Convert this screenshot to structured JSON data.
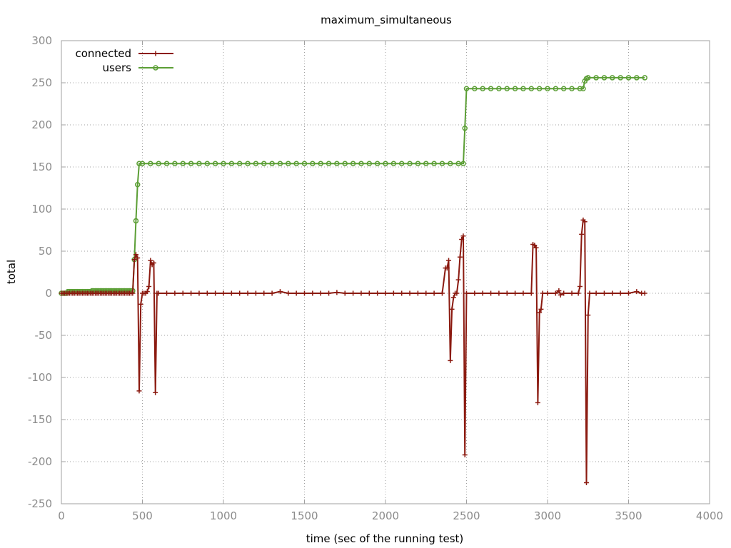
{
  "chart_data": {
    "type": "line",
    "title": "maximum_simultaneous",
    "xlabel": "time (sec of the running test)",
    "ylabel": "total",
    "xlim": [
      0,
      4000
    ],
    "ylim": [
      -250,
      300
    ],
    "xticks": [
      0,
      500,
      1000,
      1500,
      2000,
      2500,
      3000,
      3500,
      4000
    ],
    "yticks": [
      -250,
      -200,
      -150,
      -100,
      -50,
      0,
      50,
      100,
      150,
      200,
      250,
      300
    ],
    "grid": true,
    "legend_position": "top-left",
    "series": [
      {
        "name": "connected",
        "color": "#8b1a10",
        "marker": "plus",
        "points": [
          [
            0,
            0
          ],
          [
            10,
            0
          ],
          [
            20,
            0
          ],
          [
            30,
            0
          ],
          [
            40,
            0
          ],
          [
            50,
            0
          ],
          [
            60,
            0
          ],
          [
            70,
            0
          ],
          [
            80,
            0
          ],
          [
            90,
            0
          ],
          [
            100,
            0
          ],
          [
            110,
            0
          ],
          [
            120,
            0
          ],
          [
            130,
            0
          ],
          [
            140,
            0
          ],
          [
            150,
            0
          ],
          [
            160,
            0
          ],
          [
            170,
            0
          ],
          [
            180,
            0
          ],
          [
            190,
            0
          ],
          [
            200,
            0
          ],
          [
            210,
            0
          ],
          [
            220,
            0
          ],
          [
            230,
            0
          ],
          [
            240,
            0
          ],
          [
            250,
            0
          ],
          [
            260,
            0
          ],
          [
            270,
            0
          ],
          [
            280,
            0
          ],
          [
            290,
            0
          ],
          [
            300,
            0
          ],
          [
            310,
            0
          ],
          [
            320,
            0
          ],
          [
            330,
            0
          ],
          [
            340,
            0
          ],
          [
            350,
            0
          ],
          [
            360,
            0
          ],
          [
            370,
            0
          ],
          [
            380,
            0
          ],
          [
            390,
            0
          ],
          [
            400,
            0
          ],
          [
            410,
            0
          ],
          [
            420,
            0
          ],
          [
            430,
            0
          ],
          [
            440,
            0
          ],
          [
            450,
            40
          ],
          [
            460,
            46
          ],
          [
            470,
            42
          ],
          [
            480,
            -116
          ],
          [
            490,
            -13
          ],
          [
            500,
            0
          ],
          [
            510,
            0
          ],
          [
            520,
            0
          ],
          [
            530,
            2
          ],
          [
            540,
            8
          ],
          [
            550,
            39
          ],
          [
            560,
            34
          ],
          [
            570,
            36
          ],
          [
            580,
            -118
          ],
          [
            590,
            0
          ],
          [
            600,
            0
          ],
          [
            650,
            0
          ],
          [
            700,
            0
          ],
          [
            750,
            0
          ],
          [
            800,
            0
          ],
          [
            850,
            0
          ],
          [
            900,
            0
          ],
          [
            950,
            0
          ],
          [
            1000,
            0
          ],
          [
            1050,
            0
          ],
          [
            1100,
            0
          ],
          [
            1150,
            0
          ],
          [
            1200,
            0
          ],
          [
            1250,
            0
          ],
          [
            1300,
            0
          ],
          [
            1350,
            2
          ],
          [
            1400,
            0
          ],
          [
            1450,
            0
          ],
          [
            1500,
            0
          ],
          [
            1550,
            0
          ],
          [
            1600,
            0
          ],
          [
            1650,
            0
          ],
          [
            1700,
            1
          ],
          [
            1750,
            0
          ],
          [
            1800,
            0
          ],
          [
            1850,
            0
          ],
          [
            1900,
            0
          ],
          [
            1950,
            0
          ],
          [
            2000,
            0
          ],
          [
            2050,
            0
          ],
          [
            2100,
            0
          ],
          [
            2150,
            0
          ],
          [
            2200,
            0
          ],
          [
            2250,
            0
          ],
          [
            2300,
            0
          ],
          [
            2350,
            0
          ],
          [
            2370,
            30
          ],
          [
            2380,
            30
          ],
          [
            2390,
            39
          ],
          [
            2400,
            -80
          ],
          [
            2410,
            -19
          ],
          [
            2420,
            -5
          ],
          [
            2430,
            0
          ],
          [
            2440,
            0
          ],
          [
            2450,
            16
          ],
          [
            2460,
            43
          ],
          [
            2470,
            64
          ],
          [
            2480,
            68
          ],
          [
            2490,
            -192
          ],
          [
            2500,
            0
          ],
          [
            2550,
            0
          ],
          [
            2600,
            0
          ],
          [
            2650,
            0
          ],
          [
            2700,
            0
          ],
          [
            2750,
            0
          ],
          [
            2800,
            0
          ],
          [
            2850,
            0
          ],
          [
            2900,
            0
          ],
          [
            2910,
            58
          ],
          [
            2920,
            57
          ],
          [
            2930,
            54
          ],
          [
            2940,
            -130
          ],
          [
            2950,
            -23
          ],
          [
            2960,
            -19
          ],
          [
            2970,
            0
          ],
          [
            3000,
            0
          ],
          [
            3050,
            0
          ],
          [
            3070,
            3
          ],
          [
            3080,
            -2
          ],
          [
            3100,
            0
          ],
          [
            3150,
            0
          ],
          [
            3190,
            0
          ],
          [
            3200,
            8
          ],
          [
            3210,
            70
          ],
          [
            3220,
            87
          ],
          [
            3230,
            85
          ],
          [
            3240,
            -225
          ],
          [
            3250,
            -26
          ],
          [
            3260,
            0
          ],
          [
            3300,
            0
          ],
          [
            3350,
            0
          ],
          [
            3400,
            0
          ],
          [
            3450,
            0
          ],
          [
            3500,
            0
          ],
          [
            3550,
            2
          ],
          [
            3580,
            0
          ],
          [
            3600,
            0
          ]
        ]
      },
      {
        "name": "users",
        "color": "#5b9e35",
        "marker": "circle",
        "points": [
          [
            0,
            0
          ],
          [
            10,
            0
          ],
          [
            20,
            0
          ],
          [
            30,
            0
          ],
          [
            40,
            2
          ],
          [
            50,
            2
          ],
          [
            60,
            2
          ],
          [
            70,
            2
          ],
          [
            80,
            2
          ],
          [
            90,
            2
          ],
          [
            100,
            2
          ],
          [
            110,
            2
          ],
          [
            120,
            2
          ],
          [
            130,
            2
          ],
          [
            140,
            2
          ],
          [
            150,
            2
          ],
          [
            160,
            2
          ],
          [
            170,
            2
          ],
          [
            180,
            2
          ],
          [
            190,
            3
          ],
          [
            200,
            3
          ],
          [
            210,
            3
          ],
          [
            220,
            3
          ],
          [
            230,
            3
          ],
          [
            240,
            3
          ],
          [
            250,
            3
          ],
          [
            260,
            3
          ],
          [
            270,
            3
          ],
          [
            280,
            3
          ],
          [
            290,
            3
          ],
          [
            300,
            3
          ],
          [
            310,
            3
          ],
          [
            320,
            3
          ],
          [
            330,
            3
          ],
          [
            340,
            3
          ],
          [
            350,
            3
          ],
          [
            360,
            3
          ],
          [
            370,
            3
          ],
          [
            380,
            3
          ],
          [
            390,
            3
          ],
          [
            400,
            3
          ],
          [
            410,
            3
          ],
          [
            420,
            3
          ],
          [
            430,
            3
          ],
          [
            440,
            3
          ],
          [
            450,
            40
          ],
          [
            460,
            86
          ],
          [
            470,
            129
          ],
          [
            480,
            154
          ],
          [
            500,
            154
          ],
          [
            550,
            154
          ],
          [
            600,
            154
          ],
          [
            650,
            154
          ],
          [
            700,
            154
          ],
          [
            750,
            154
          ],
          [
            800,
            154
          ],
          [
            850,
            154
          ],
          [
            900,
            154
          ],
          [
            950,
            154
          ],
          [
            1000,
            154
          ],
          [
            1050,
            154
          ],
          [
            1100,
            154
          ],
          [
            1150,
            154
          ],
          [
            1200,
            154
          ],
          [
            1250,
            154
          ],
          [
            1300,
            154
          ],
          [
            1350,
            154
          ],
          [
            1400,
            154
          ],
          [
            1450,
            154
          ],
          [
            1500,
            154
          ],
          [
            1550,
            154
          ],
          [
            1600,
            154
          ],
          [
            1650,
            154
          ],
          [
            1700,
            154
          ],
          [
            1750,
            154
          ],
          [
            1800,
            154
          ],
          [
            1850,
            154
          ],
          [
            1900,
            154
          ],
          [
            1950,
            154
          ],
          [
            2000,
            154
          ],
          [
            2050,
            154
          ],
          [
            2100,
            154
          ],
          [
            2150,
            154
          ],
          [
            2200,
            154
          ],
          [
            2250,
            154
          ],
          [
            2300,
            154
          ],
          [
            2350,
            154
          ],
          [
            2400,
            154
          ],
          [
            2450,
            154
          ],
          [
            2480,
            154
          ],
          [
            2490,
            196
          ],
          [
            2500,
            243
          ],
          [
            2550,
            243
          ],
          [
            2600,
            243
          ],
          [
            2650,
            243
          ],
          [
            2700,
            243
          ],
          [
            2750,
            243
          ],
          [
            2800,
            243
          ],
          [
            2850,
            243
          ],
          [
            2900,
            243
          ],
          [
            2950,
            243
          ],
          [
            3000,
            243
          ],
          [
            3050,
            243
          ],
          [
            3100,
            243
          ],
          [
            3150,
            243
          ],
          [
            3200,
            243
          ],
          [
            3220,
            243
          ],
          [
            3230,
            252
          ],
          [
            3240,
            255
          ],
          [
            3250,
            256
          ],
          [
            3300,
            256
          ],
          [
            3350,
            256
          ],
          [
            3400,
            256
          ],
          [
            3450,
            256
          ],
          [
            3500,
            256
          ],
          [
            3550,
            256
          ],
          [
            3600,
            256
          ]
        ]
      }
    ]
  }
}
